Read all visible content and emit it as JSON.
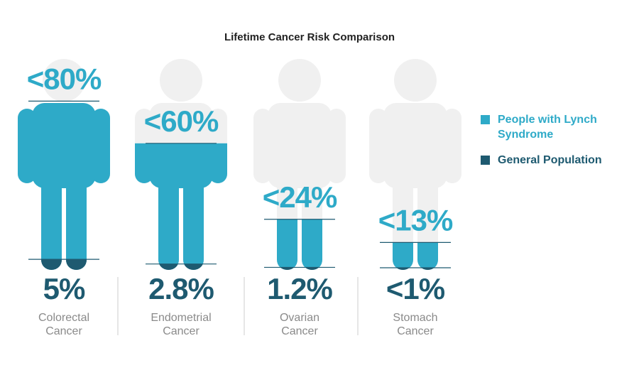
{
  "chart_data": {
    "type": "pictograph",
    "title": "Lifetime Cancer Risk Comparison",
    "categories": [
      "Colorectal Cancer",
      "Endometrial Cancer",
      "Ovarian Cancer",
      "Stomach Cancer"
    ],
    "series": [
      {
        "name": "People with Lynch Syndrome",
        "color": "#2eaac8",
        "values": [
          80,
          60,
          24,
          13
        ],
        "value_labels": [
          "<80%",
          "<60%",
          "<24%",
          "<13%"
        ]
      },
      {
        "name": "General Population",
        "color": "#1e5a70",
        "values": [
          5,
          2.8,
          1.2,
          1
        ],
        "value_labels": [
          "5%",
          "2.8%",
          "1.2%",
          "<1%"
        ]
      }
    ],
    "ylim": [
      0,
      100
    ],
    "legend": "right"
  }
}
